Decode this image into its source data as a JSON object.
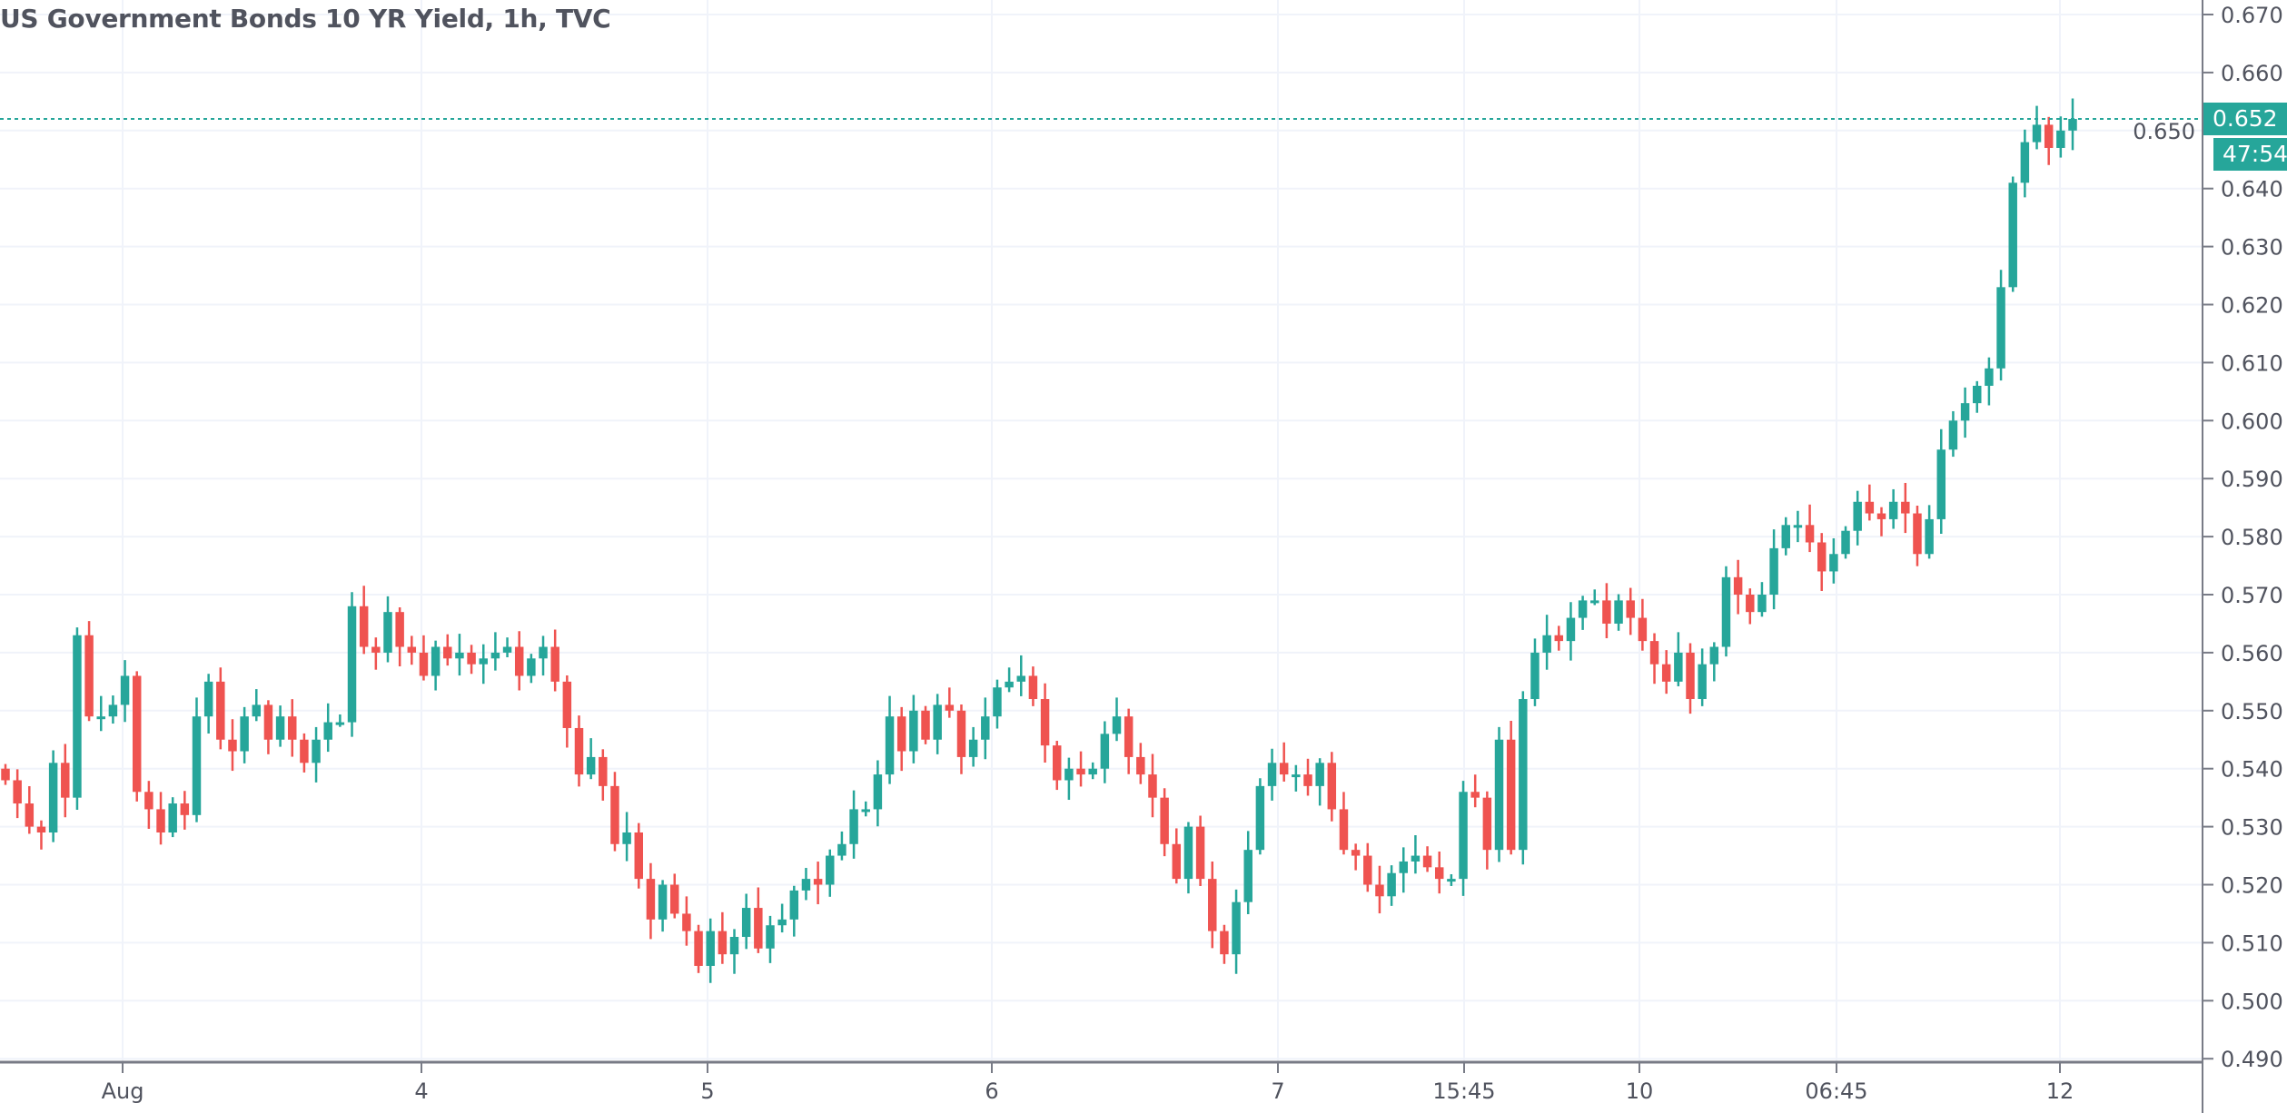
{
  "title": "US Government Bonds 10 YR Yield, 1h, TVC",
  "colors": {
    "up": "#26a69a",
    "down": "#ef5350",
    "grid": "#f0f3fa",
    "axis": "#787b86",
    "text": "#50535e"
  },
  "current_price_label": "0.652",
  "countdown_label": "47:54",
  "chart_data": {
    "type": "candlestick",
    "title": "US Government Bonds 10 YR Yield, 1h, TVC",
    "interval": "1h",
    "ylim": [
      0.49,
      0.67
    ],
    "y_ticks": [
      "0.670",
      "0.660",
      "0.650",
      "0.640",
      "0.630",
      "0.620",
      "0.610",
      "0.600",
      "0.590",
      "0.580",
      "0.570",
      "0.560",
      "0.550",
      "0.540",
      "0.530",
      "0.520",
      "0.510",
      "0.500",
      "0.490"
    ],
    "x_ticks": [
      "Aug",
      "4",
      "5",
      "6",
      "7",
      "15:45",
      "10",
      "06:45",
      "12"
    ],
    "grid": true,
    "current_price": 0.652,
    "close": [
      0.538,
      0.534,
      0.53,
      0.529,
      0.541,
      0.535,
      0.563,
      0.549,
      0.549,
      0.551,
      0.556,
      0.536,
      0.533,
      0.529,
      0.534,
      0.532,
      0.549,
      0.555,
      0.545,
      0.543,
      0.549,
      0.551,
      0.545,
      0.549,
      0.545,
      0.541,
      0.545,
      0.548,
      0.548,
      0.568,
      0.561,
      0.56,
      0.567,
      0.561,
      0.56,
      0.556,
      0.561,
      0.559,
      0.56,
      0.558,
      0.559,
      0.56,
      0.561,
      0.556,
      0.559,
      0.561,
      0.555,
      0.547,
      0.539,
      0.542,
      0.537,
      0.527,
      0.529,
      0.521,
      0.514,
      0.52,
      0.515,
      0.512,
      0.506,
      0.512,
      0.508,
      0.511,
      0.516,
      0.509,
      0.513,
      0.514,
      0.519,
      0.521,
      0.52,
      0.525,
      0.527,
      0.533,
      0.533,
      0.539,
      0.549,
      0.543,
      0.55,
      0.545,
      0.551,
      0.55,
      0.542,
      0.545,
      0.549,
      0.554,
      0.555,
      0.556,
      0.552,
      0.544,
      0.538,
      0.54,
      0.539,
      0.54,
      0.546,
      0.549,
      0.542,
      0.539,
      0.535,
      0.527,
      0.521,
      0.53,
      0.521,
      0.512,
      0.508,
      0.517,
      0.526,
      0.537,
      0.541,
      0.539,
      0.539,
      0.537,
      0.541,
      0.533,
      0.526,
      0.525,
      0.52,
      0.518,
      0.522,
      0.524,
      0.525,
      0.523,
      0.521,
      0.521,
      0.536,
      0.535,
      0.526,
      0.545,
      0.526,
      0.552,
      0.56,
      0.563,
      0.562,
      0.566,
      0.569,
      0.569,
      0.565,
      0.569,
      0.566,
      0.562,
      0.558,
      0.555,
      0.56,
      0.552,
      0.558,
      0.561,
      0.573,
      0.57,
      0.567,
      0.57,
      0.578,
      0.582,
      0.582,
      0.579,
      0.574,
      0.577,
      0.581,
      0.586,
      0.584,
      0.583,
      0.586,
      0.584,
      0.577,
      0.583,
      0.595,
      0.6,
      0.603,
      0.606,
      0.609,
      0.623,
      0.641,
      0.648,
      0.651,
      0.647,
      0.65,
      0.652
    ]
  }
}
